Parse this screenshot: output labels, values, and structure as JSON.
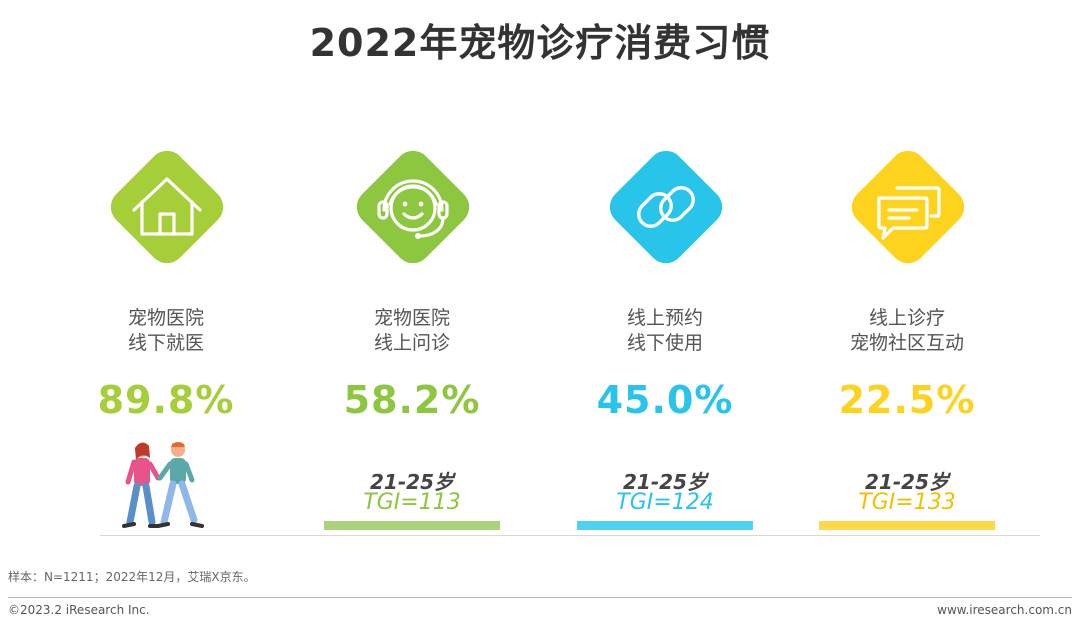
{
  "title": "2022年宠物诊疗消费习惯",
  "source": "样本：N=1211；2022年12月，艾瑞X京东。",
  "footer": {
    "copyright": "©2023.2 iResearch Inc.",
    "website": "www.iresearch.com.cn"
  },
  "colors": {
    "green_light": "#a6ce39",
    "green": "#8dc63f",
    "blue": "#29c4ea",
    "yellow": "#fdd31d"
  },
  "chart_data": {
    "type": "table",
    "title": "2022年宠物诊疗消费习惯",
    "items": [
      {
        "label_line1": "宠物医院",
        "label_line2": "线下就医",
        "value": 89.8,
        "value_text": "89.8%",
        "icon": "house-icon",
        "color": "#a6ce39",
        "age": "",
        "tgi": ""
      },
      {
        "label_line1": "宠物医院",
        "label_line2": "线上问诊",
        "value": 58.2,
        "value_text": "58.2%",
        "icon": "headset-smile-icon",
        "color": "#8dc63f",
        "age": "21-25岁",
        "tgi": "TGI=113"
      },
      {
        "label_line1": "线上预约",
        "label_line2": "线下使用",
        "value": 45.0,
        "value_text": "45.0%",
        "icon": "link-icon",
        "color": "#29c4ea",
        "age": "21-25岁",
        "tgi": "TGI=124"
      },
      {
        "label_line1": "线上诊疗",
        "label_line2": "宠物社区互动",
        "value": 22.5,
        "value_text": "22.5%",
        "icon": "chat-bubbles-icon",
        "color": "#fdd31d",
        "age": "21-25岁",
        "tgi": "TGI=133"
      }
    ]
  }
}
